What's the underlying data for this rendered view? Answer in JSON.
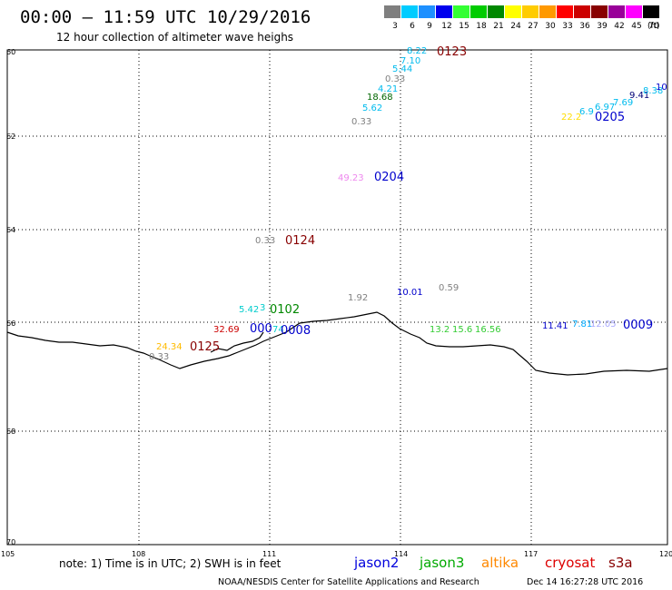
{
  "header": {
    "title": "00:00 – 11:59 UTC 10/29/2016",
    "subtitle": "12 hour collection of altimeter wave heighs"
  },
  "legend": {
    "labels": [
      "3",
      "6",
      "9",
      "12",
      "15",
      "18",
      "21",
      "24",
      "27",
      "30",
      "33",
      "36",
      "39",
      "42",
      "45",
      "70"
    ],
    "unit": "(ft)",
    "colors": [
      "#7f7f7f",
      "#00ccff",
      "#1e90ff",
      "#0000ee",
      "#33ff33",
      "#00cc00",
      "#008800",
      "#ffff00",
      "#ffcc00",
      "#ff9900",
      "#ff0000",
      "#cc0000",
      "#880000",
      "#990099",
      "#ff00ff",
      "#000000"
    ]
  },
  "map": {
    "lat_labels": [
      "60",
      "62",
      "64",
      "66",
      "68",
      "70"
    ],
    "lon_labels": [
      "105",
      "108",
      "111",
      "114",
      "117",
      "120"
    ]
  },
  "observations": [
    {
      "text": "8.22",
      "color": "#00bbee"
    },
    {
      "text": "7.10",
      "color": "#00bbee"
    },
    {
      "text": "5.44",
      "color": "#00bbee"
    },
    {
      "text": "0.33",
      "color": "#808080"
    },
    {
      "text": "4.21",
      "color": "#00bbee"
    },
    {
      "text": "18.68",
      "color": "#006600"
    },
    {
      "text": "5.62",
      "color": "#00bbee"
    },
    {
      "text": "0.33",
      "color": "#808080"
    },
    {
      "text": "49.23",
      "color": "#ee88ee"
    },
    {
      "text": "0.33",
      "color": "#808080"
    },
    {
      "text": "5.42",
      "color": "#00cccc"
    },
    {
      "text": "3",
      "color": "#00cccc"
    },
    {
      "text": "1.92",
      "color": "#808080"
    },
    {
      "text": "10.01",
      "color": "#0000cc"
    },
    {
      "text": "0.59",
      "color": "#808080"
    },
    {
      "text": "32.69",
      "color": "#cc0000"
    },
    {
      "text": "74",
      "color": "#00cccc"
    },
    {
      "text": "24.34",
      "color": "#ffbb00"
    },
    {
      "text": "0.33",
      "color": "#808080"
    },
    {
      "text": "13.2",
      "color": "#33cc33"
    },
    {
      "text": "15.6",
      "color": "#33cc33"
    },
    {
      "text": "16.56",
      "color": "#33cc33"
    },
    {
      "text": "11.41",
      "color": "#0000cc"
    },
    {
      "text": "7.81",
      "color": "#00aaff"
    },
    {
      "text": "12.05",
      "color": "#aaaaff"
    },
    {
      "text": "22.2",
      "color": "#ffdd00"
    },
    {
      "text": "6.9",
      "color": "#00bbee"
    },
    {
      "text": "6.97",
      "color": "#00bbee"
    },
    {
      "text": "7.69",
      "color": "#00bbee"
    },
    {
      "text": "9.41",
      "color": "#000077"
    },
    {
      "text": "8.38",
      "color": "#00bbee"
    },
    {
      "text": "10",
      "color": "#0000cc"
    }
  ],
  "times": [
    {
      "text": "0123",
      "color": "#880000"
    },
    {
      "text": "0204",
      "color": "#0000cc"
    },
    {
      "text": "0124",
      "color": "#880000"
    },
    {
      "text": "0102",
      "color": "#008800"
    },
    {
      "text": "0008",
      "color": "#0000cc"
    },
    {
      "text": "0125",
      "color": "#880000"
    },
    {
      "text": "0205",
      "color": "#0000cc"
    },
    {
      "text": "0009",
      "color": "#0000cc"
    },
    {
      "text": "000",
      "color": "#0000cc"
    }
  ],
  "footer": {
    "note": "note: 1) Time is in UTC; 2) SWH is in feet",
    "satellites": [
      {
        "name": "jason2",
        "color": "#0000dd"
      },
      {
        "name": "jason3",
        "color": "#00aa00"
      },
      {
        "name": "altika",
        "color": "#ff8800"
      },
      {
        "name": "cryosat",
        "color": "#dd0000"
      },
      {
        "name": "s3a",
        "color": "#880000"
      }
    ],
    "credit": "NOAA/NESDIS Center for Satellite Applications and Research",
    "timestamp": "Dec 14 16:27:28 UTC 2016"
  }
}
